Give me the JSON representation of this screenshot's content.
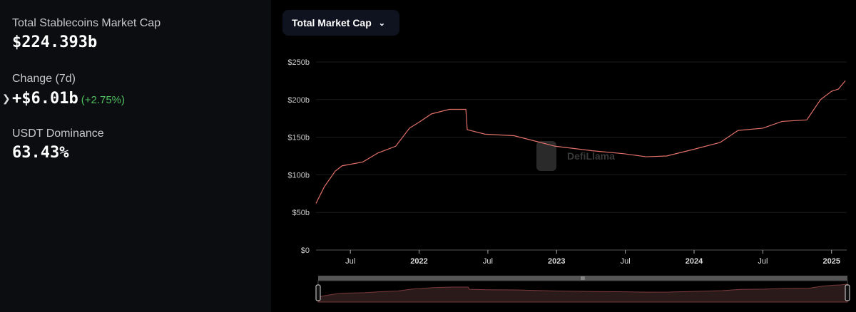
{
  "summary": {
    "mcap_label": "Total Stablecoins Market Cap",
    "mcap_value": "$224.393b",
    "change_label": "Change (7d)",
    "change_value": "+$6.01b",
    "change_pct": "(+2.75%)",
    "dom_label": "USDT Dominance",
    "dom_value": "63.43%"
  },
  "dropdown": {
    "label": "Total Market Cap"
  },
  "watermark": "DefiLlama",
  "colors": {
    "line": "#e0706a",
    "positive": "#4fbf5f"
  },
  "chart_data": {
    "type": "line",
    "title": "Total Market Cap",
    "ylabel": "",
    "xlabel": "",
    "ylim": [
      0,
      250
    ],
    "xlim": [
      2021.25,
      2025.1
    ],
    "yticks": [
      {
        "v": 0,
        "label": "$0"
      },
      {
        "v": 50,
        "label": "$50b"
      },
      {
        "v": 100,
        "label": "$100b"
      },
      {
        "v": 150,
        "label": "$150b"
      },
      {
        "v": 200,
        "label": "$200b"
      },
      {
        "v": 250,
        "label": "$250b"
      }
    ],
    "xticks": [
      {
        "v": 2021.5,
        "label": "Jul",
        "bold": false
      },
      {
        "v": 2022,
        "label": "2022",
        "bold": true
      },
      {
        "v": 2022.5,
        "label": "Jul",
        "bold": false
      },
      {
        "v": 2023,
        "label": "2023",
        "bold": true
      },
      {
        "v": 2023.5,
        "label": "Jul",
        "bold": false
      },
      {
        "v": 2024,
        "label": "2024",
        "bold": true
      },
      {
        "v": 2024.5,
        "label": "Jul",
        "bold": false
      },
      {
        "v": 2025,
        "label": "2025",
        "bold": true
      }
    ],
    "x": [
      2021.25,
      2021.31,
      2021.39,
      2021.44,
      2021.59,
      2021.7,
      2021.83,
      2021.93,
      2022.0,
      2022.09,
      2022.22,
      2022.34,
      2022.35,
      2022.48,
      2022.69,
      2022.84,
      2022.99,
      2023.26,
      2023.49,
      2023.65,
      2023.8,
      2024.0,
      2024.19,
      2024.32,
      2024.5,
      2024.64,
      2024.82,
      2024.92,
      2025.0,
      2025.05,
      2025.1
    ],
    "values": [
      62,
      84,
      105,
      112,
      117,
      129,
      138,
      162,
      170,
      181,
      187,
      187,
      160,
      154,
      152,
      145,
      138,
      132,
      128,
      124,
      125,
      134,
      143,
      159,
      162,
      171,
      173,
      200,
      211,
      214,
      225
    ],
    "grid": true
  }
}
